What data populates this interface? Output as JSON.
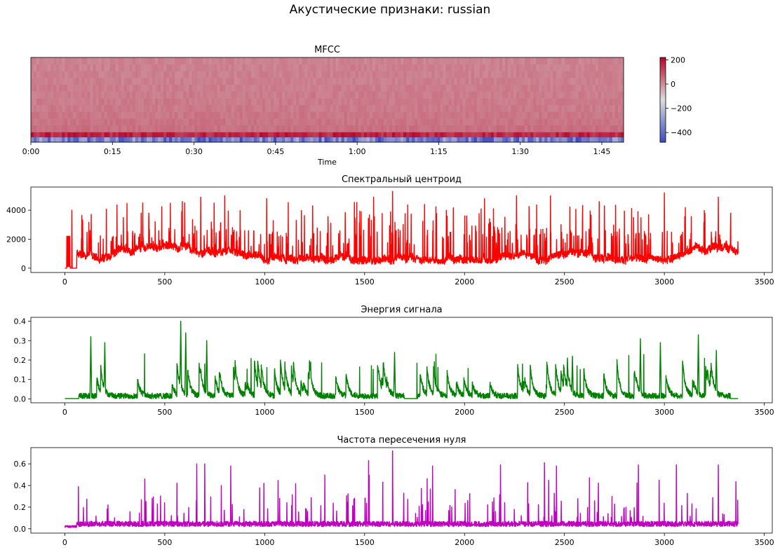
{
  "figure": {
    "title": "Акустические признаки: russian",
    "colors": {
      "centroid": "#ff0000",
      "energy": "#008000",
      "zcr": "#bf00bf",
      "cmap_low": "#3b4cc0",
      "cmap_mid": "#dddddd",
      "cmap_high": "#b40426"
    }
  },
  "chart_data": [
    {
      "type": "heatmap",
      "title": "MFCC",
      "xlabel": "Time",
      "x_ticks": [
        "0:00",
        "0:15",
        "0:30",
        "0:45",
        "1:00",
        "1:15",
        "1:30",
        "1:45"
      ],
      "x_tick_values": [
        0,
        15,
        30,
        45,
        60,
        75,
        90,
        105
      ],
      "xlim": [
        0,
        109
      ],
      "n_coefficients": 13,
      "colorbar": {
        "ticks": [
          200,
          0,
          -200,
          -400
        ],
        "tick_labels": [
          "200",
          "0",
          "−200",
          "−400"
        ],
        "range": [
          -480,
          220
        ],
        "cmap": "coolwarm"
      },
      "approx_row_means": [
        -430,
        160,
        45,
        40,
        35,
        30,
        28,
        26,
        24,
        22,
        20,
        18,
        16
      ]
    },
    {
      "type": "line",
      "title": "Спектральный центроид",
      "series": [
        {
          "color": "#ff0000"
        }
      ],
      "xlim": [
        -170,
        3540
      ],
      "ylim": [
        -300,
        5600
      ],
      "x_ticks": [
        0,
        500,
        1000,
        1500,
        2000,
        2500,
        3000,
        3500
      ],
      "y_ticks": [
        0,
        2000,
        4000
      ],
      "n_points": 3370,
      "baseline_approx": 1000,
      "peaks": [
        [
          35,
          4000
        ],
        [
          390,
          4500
        ],
        [
          600,
          4500
        ],
        [
          680,
          4900
        ],
        [
          800,
          5000
        ],
        [
          1010,
          4800
        ],
        [
          1240,
          4300
        ],
        [
          1545,
          4900
        ],
        [
          1640,
          5300
        ],
        [
          1800,
          4400
        ],
        [
          2100,
          4800
        ],
        [
          2260,
          5000
        ],
        [
          2430,
          5000
        ],
        [
          2700,
          4300
        ],
        [
          3000,
          5200
        ],
        [
          3270,
          4900
        ]
      ]
    },
    {
      "type": "line",
      "title": "Энергия сигнала",
      "series": [
        {
          "color": "#008000"
        }
      ],
      "xlim": [
        -170,
        3540
      ],
      "ylim": [
        -0.02,
        0.42
      ],
      "x_ticks": [
        0,
        500,
        1000,
        1500,
        2000,
        2500,
        3000,
        3500
      ],
      "y_ticks": [
        0.0,
        0.1,
        0.2,
        0.3,
        0.4
      ],
      "y_tick_labels": [
        "0.0",
        "0.1",
        "0.2",
        "0.3",
        "0.4"
      ],
      "n_points": 3370,
      "peaks": [
        [
          130,
          0.32
        ],
        [
          200,
          0.29
        ],
        [
          580,
          0.4
        ],
        [
          605,
          0.34
        ],
        [
          710,
          0.3
        ],
        [
          1230,
          0.19
        ],
        [
          1650,
          0.24
        ],
        [
          2540,
          0.22
        ],
        [
          2880,
          0.31
        ],
        [
          2980,
          0.29
        ],
        [
          3170,
          0.33
        ],
        [
          3260,
          0.25
        ]
      ],
      "quiet_segments": [
        [
          0,
          70
        ],
        [
          1700,
          1760
        ],
        [
          3330,
          3370
        ]
      ]
    },
    {
      "type": "line",
      "title": "Частота пересечения нуля",
      "series": [
        {
          "color": "#bf00bf"
        }
      ],
      "xlim": [
        -170,
        3540
      ],
      "ylim": [
        -0.04,
        0.75
      ],
      "x_ticks": [
        0,
        500,
        1000,
        1500,
        2000,
        2500,
        3000,
        3500
      ],
      "y_ticks": [
        0.0,
        0.2,
        0.4,
        0.6
      ],
      "y_tick_labels": [
        "0.0",
        "0.2",
        "0.4",
        "0.6"
      ],
      "n_points": 3370,
      "baseline_approx": 0.04,
      "peaks": [
        [
          400,
          0.46
        ],
        [
          660,
          0.6
        ],
        [
          700,
          0.6
        ],
        [
          830,
          0.58
        ],
        [
          1520,
          0.63
        ],
        [
          1640,
          0.72
        ],
        [
          1840,
          0.58
        ],
        [
          2180,
          0.59
        ],
        [
          2400,
          0.61
        ],
        [
          2460,
          0.58
        ],
        [
          2870,
          0.59
        ],
        [
          3060,
          0.59
        ],
        [
          3270,
          0.59
        ]
      ]
    }
  ]
}
